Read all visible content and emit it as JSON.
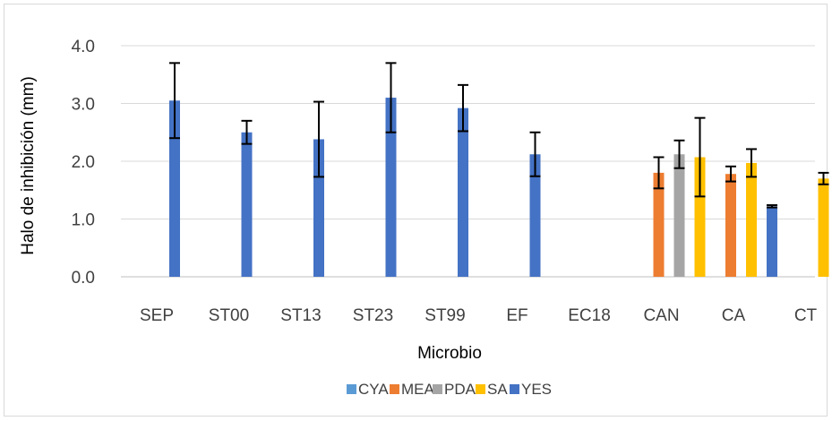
{
  "chart_data": {
    "type": "bar",
    "xlabel": "Microbio",
    "ylabel": "Halo de inhibición (mm)",
    "ylim": [
      0,
      4.0
    ],
    "yticks": [
      "0.0",
      "1.0",
      "2.0",
      "3.0",
      "4.0"
    ],
    "ytick_values": [
      0,
      1,
      2,
      3,
      4
    ],
    "grid": true,
    "legend_position": "bottom",
    "categories": [
      "SEP",
      "ST00",
      "ST13",
      "ST23",
      "ST99",
      "EF",
      "EC18",
      "CAN",
      "CA",
      "CT"
    ],
    "series": [
      {
        "name": "CYA",
        "color": "#5B9BD5",
        "values": [
          null,
          null,
          null,
          null,
          null,
          null,
          null,
          null,
          null,
          null
        ],
        "errors": [
          null,
          null,
          null,
          null,
          null,
          null,
          null,
          null,
          null,
          null
        ]
      },
      {
        "name": "MEA",
        "color": "#ED7D31",
        "values": [
          null,
          null,
          null,
          null,
          null,
          null,
          null,
          1.8,
          1.78,
          null
        ],
        "errors": [
          null,
          null,
          null,
          null,
          null,
          null,
          null,
          0.27,
          0.13,
          null
        ]
      },
      {
        "name": "PDA",
        "color": "#A5A5A5",
        "values": [
          null,
          null,
          null,
          null,
          null,
          null,
          null,
          2.12,
          null,
          null
        ],
        "errors": [
          null,
          null,
          null,
          null,
          null,
          null,
          null,
          0.24,
          null,
          null
        ]
      },
      {
        "name": "SA",
        "color": "#FFC000",
        "values": [
          null,
          null,
          null,
          null,
          null,
          null,
          null,
          2.07,
          1.97,
          1.7
        ],
        "errors": [
          null,
          null,
          null,
          null,
          null,
          null,
          null,
          0.68,
          0.24,
          0.1
        ]
      },
      {
        "name": "YES",
        "color": "#4472C4",
        "values": [
          3.05,
          2.5,
          2.38,
          3.1,
          2.92,
          2.12,
          null,
          null,
          1.22,
          null
        ],
        "errors": [
          0.65,
          0.2,
          0.65,
          0.6,
          0.4,
          0.38,
          null,
          null,
          0.02,
          null
        ]
      }
    ]
  }
}
